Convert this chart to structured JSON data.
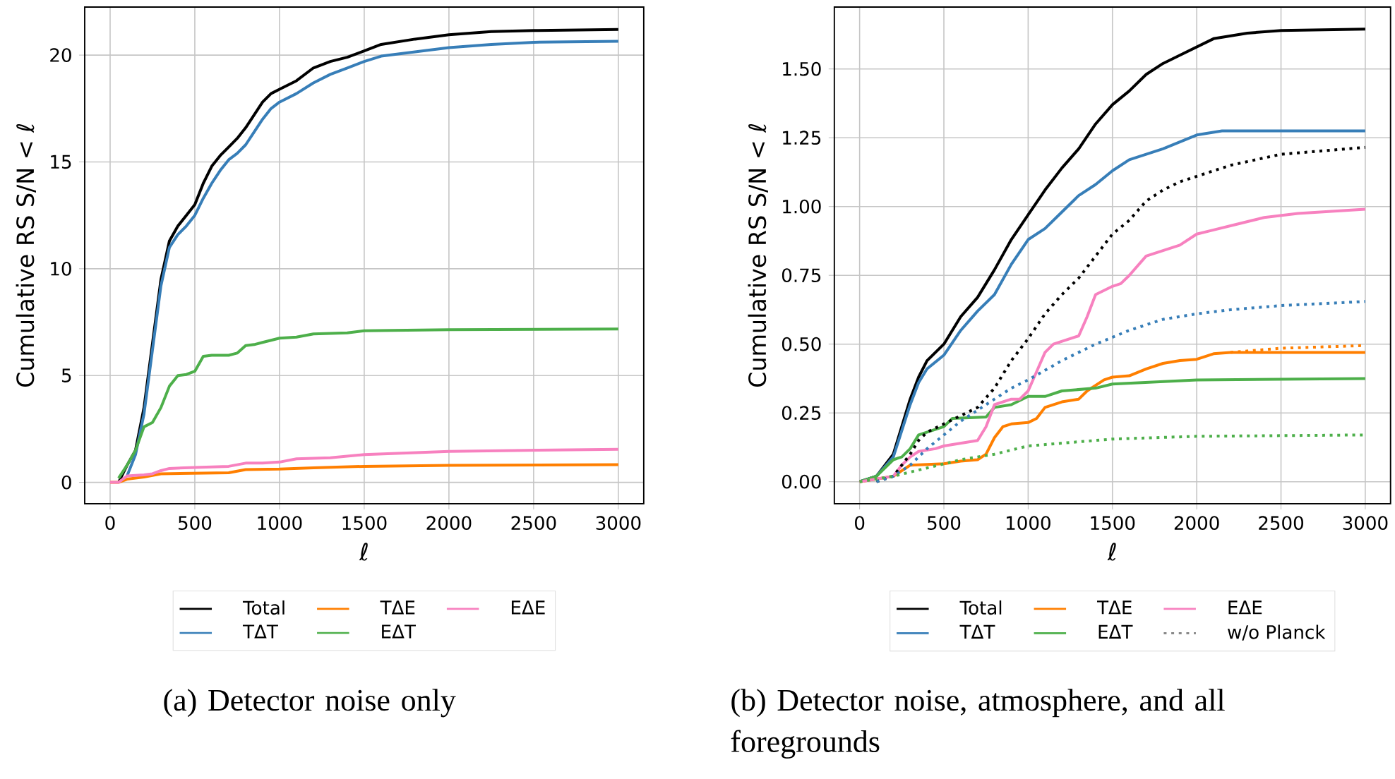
{
  "chart_data": [
    {
      "type": "line",
      "xlabel": "ℓ",
      "ylabel": "Cumulative RS S/N  < *ℓ*",
      "xlim": [
        -150,
        3150
      ],
      "ylim": [
        -1.0,
        22.25
      ],
      "xticks": [
        0,
        500,
        1000,
        1500,
        2000,
        2500,
        3000
      ],
      "yticks": [
        0,
        5,
        10,
        15,
        20
      ],
      "grid": true,
      "legend": "bottom",
      "annotations": [
        "(a) Detector noise only"
      ],
      "series": [
        {
          "name": "Total",
          "color": "#000000",
          "x": [
            50,
            100,
            150,
            200,
            250,
            300,
            350,
            400,
            450,
            500,
            550,
            600,
            650,
            700,
            750,
            800,
            850,
            900,
            950,
            1000,
            1100,
            1200,
            1300,
            1400,
            1500,
            1600,
            1800,
            2000,
            2250,
            2500,
            3000
          ],
          "values": [
            0,
            0.8,
            1.5,
            3.5,
            6.5,
            9.5,
            11.3,
            12,
            12.5,
            13,
            14,
            14.8,
            15.3,
            15.7,
            16.1,
            16.6,
            17.2,
            17.8,
            18.2,
            18.4,
            18.8,
            19.4,
            19.7,
            19.9,
            20.2,
            20.5,
            20.75,
            20.95,
            21.1,
            21.15,
            21.2
          ]
        },
        {
          "name": "TΔT",
          "color": "#377eb8",
          "x": [
            100,
            150,
            200,
            250,
            300,
            350,
            400,
            450,
            500,
            550,
            600,
            650,
            700,
            750,
            800,
            850,
            900,
            950,
            1000,
            1100,
            1200,
            1300,
            1400,
            1500,
            1600,
            1800,
            2000,
            2250,
            2500,
            3000
          ],
          "values": [
            0.3,
            1.3,
            3.2,
            6.2,
            9.2,
            11,
            11.6,
            12,
            12.5,
            13.3,
            14,
            14.6,
            15.1,
            15.4,
            15.8,
            16.4,
            17,
            17.5,
            17.8,
            18.2,
            18.7,
            19.1,
            19.4,
            19.7,
            19.95,
            20.15,
            20.35,
            20.5,
            20.6,
            20.65
          ]
        },
        {
          "name": "TΔE",
          "color": "#ff7f00",
          "x": [
            0,
            50,
            100,
            200,
            300,
            700,
            800,
            1000,
            1200,
            1500,
            2000,
            3000
          ],
          "values": [
            0,
            0,
            0.15,
            0.25,
            0.4,
            0.45,
            0.6,
            0.62,
            0.68,
            0.75,
            0.8,
            0.83
          ]
        },
        {
          "name": "EΔT",
          "color": "#4daf4a",
          "x": [
            50,
            100,
            150,
            200,
            250,
            300,
            350,
            400,
            450,
            500,
            550,
            600,
            700,
            750,
            800,
            850,
            900,
            1000,
            1100,
            1200,
            1400,
            1500,
            2000,
            3000
          ],
          "values": [
            0.2,
            0.8,
            1.5,
            2.6,
            2.8,
            3.5,
            4.5,
            5,
            5.05,
            5.2,
            5.9,
            5.95,
            5.95,
            6.05,
            6.4,
            6.45,
            6.55,
            6.75,
            6.8,
            6.95,
            7,
            7.1,
            7.15,
            7.18
          ]
        },
        {
          "name": "EΔE",
          "color": "#f781bf",
          "x": [
            0,
            50,
            100,
            200,
            250,
            300,
            350,
            500,
            700,
            800,
            900,
            1000,
            1100,
            1300,
            1500,
            2000,
            3000
          ],
          "values": [
            0,
            0,
            0.3,
            0.35,
            0.4,
            0.55,
            0.65,
            0.7,
            0.75,
            0.9,
            0.9,
            0.95,
            1.1,
            1.15,
            1.3,
            1.45,
            1.55
          ]
        }
      ]
    },
    {
      "type": "line",
      "xlabel": "ℓ",
      "ylabel": "Cumulative RS S/N  < *ℓ*",
      "xlim": [
        -150,
        3150
      ],
      "ylim": [
        -0.08,
        1.725
      ],
      "xticks": [
        0,
        500,
        1000,
        1500,
        2000,
        2500,
        3000
      ],
      "yticks": [
        {
          "value": 0,
          "label": "0.00"
        },
        {
          "value": 0.25,
          "label": "0.25"
        },
        {
          "value": 0.5,
          "label": "0.50"
        },
        {
          "value": 0.75,
          "label": "0.75"
        },
        {
          "value": 1,
          "label": "1.00"
        },
        {
          "value": 1.25,
          "label": "1.25"
        },
        {
          "value": 1.5,
          "label": "1.50"
        }
      ],
      "grid": true,
      "legend": "bottom",
      "annotations": [
        "(b) Detector noise, atmosphere, and all foregrounds"
      ],
      "series": [
        {
          "name": "Total",
          "color": "#000000",
          "x": [
            0,
            100,
            200,
            300,
            350,
            400,
            450,
            500,
            550,
            600,
            700,
            800,
            900,
            1000,
            1100,
            1200,
            1300,
            1400,
            1500,
            1600,
            1700,
            1800,
            1900,
            2000,
            2100,
            2300,
            2500,
            3000
          ],
          "values": [
            0,
            0.02,
            0.1,
            0.3,
            0.38,
            0.44,
            0.47,
            0.5,
            0.55,
            0.6,
            0.67,
            0.77,
            0.88,
            0.97,
            1.06,
            1.14,
            1.21,
            1.3,
            1.37,
            1.42,
            1.48,
            1.52,
            1.55,
            1.58,
            1.61,
            1.63,
            1.64,
            1.645
          ]
        },
        {
          "name": "TΔT",
          "color": "#377eb8",
          "x": [
            0,
            100,
            200,
            300,
            350,
            400,
            500,
            600,
            700,
            800,
            900,
            1000,
            1100,
            1200,
            1300,
            1400,
            1500,
            1600,
            1800,
            2000,
            2150,
            3000
          ],
          "values": [
            0,
            0.02,
            0.09,
            0.28,
            0.36,
            0.41,
            0.46,
            0.55,
            0.62,
            0.68,
            0.79,
            0.88,
            0.92,
            0.98,
            1.04,
            1.08,
            1.13,
            1.17,
            1.21,
            1.26,
            1.275,
            1.275
          ]
        },
        {
          "name": "TΔE",
          "color": "#ff7f00",
          "x": [
            0,
            200,
            250,
            300,
            500,
            600,
            700,
            750,
            800,
            850,
            900,
            1000,
            1050,
            1100,
            1200,
            1300,
            1350,
            1450,
            1500,
            1600,
            1700,
            1800,
            1900,
            2000,
            2100,
            2200,
            3000
          ],
          "values": [
            0,
            0.02,
            0.04,
            0.06,
            0.065,
            0.075,
            0.08,
            0.1,
            0.16,
            0.2,
            0.21,
            0.215,
            0.23,
            0.27,
            0.29,
            0.3,
            0.33,
            0.37,
            0.38,
            0.385,
            0.41,
            0.43,
            0.44,
            0.445,
            0.465,
            0.47,
            0.47
          ]
        },
        {
          "name": "EΔT",
          "color": "#4daf4a",
          "x": [
            0,
            100,
            200,
            250,
            300,
            350,
            400,
            450,
            500,
            550,
            750,
            800,
            900,
            1000,
            1100,
            1200,
            1400,
            1500,
            2000,
            3000
          ],
          "values": [
            0,
            0.02,
            0.08,
            0.09,
            0.12,
            0.17,
            0.18,
            0.19,
            0.2,
            0.23,
            0.235,
            0.27,
            0.28,
            0.31,
            0.31,
            0.33,
            0.34,
            0.355,
            0.37,
            0.375
          ]
        },
        {
          "name": "EΔE",
          "color": "#f781bf",
          "x": [
            0,
            200,
            250,
            300,
            350,
            450,
            500,
            600,
            700,
            750,
            800,
            900,
            950,
            1000,
            1050,
            1100,
            1150,
            1300,
            1350,
            1400,
            1500,
            1550,
            1600,
            1700,
            1800,
            1900,
            2000,
            2100,
            2200,
            2400,
            2600,
            3000
          ],
          "values": [
            0,
            0.02,
            0.06,
            0.09,
            0.11,
            0.12,
            0.13,
            0.14,
            0.15,
            0.2,
            0.28,
            0.3,
            0.3,
            0.33,
            0.4,
            0.47,
            0.5,
            0.53,
            0.6,
            0.68,
            0.71,
            0.72,
            0.75,
            0.82,
            0.84,
            0.86,
            0.9,
            0.915,
            0.93,
            0.96,
            0.975,
            0.99
          ]
        },
        {
          "color": "#000000",
          "line_style": "dotted",
          "x": [
            100,
            200,
            250,
            300,
            350,
            400,
            500,
            600,
            700,
            800,
            900,
            1000,
            1100,
            1200,
            1300,
            1400,
            1500,
            1600,
            1700,
            1800,
            1900,
            2000,
            2200,
            2500,
            3000
          ],
          "values": [
            0,
            0.02,
            0.06,
            0.1,
            0.15,
            0.18,
            0.21,
            0.24,
            0.27,
            0.34,
            0.44,
            0.52,
            0.61,
            0.68,
            0.74,
            0.82,
            0.9,
            0.95,
            1.02,
            1.06,
            1.09,
            1.11,
            1.15,
            1.19,
            1.215
          ]
        },
        {
          "color": "#377eb8",
          "line_style": "dotted",
          "x": [
            100,
            200,
            300,
            400,
            500,
            600,
            700,
            800,
            900,
            1000,
            1200,
            1400,
            1600,
            1800,
            2000,
            2200,
            2500,
            3000
          ],
          "values": [
            0,
            0.02,
            0.06,
            0.12,
            0.17,
            0.22,
            0.26,
            0.3,
            0.34,
            0.37,
            0.44,
            0.5,
            0.55,
            0.59,
            0.61,
            0.625,
            0.64,
            0.655
          ]
        },
        {
          "color": "#ff7f00",
          "line_style": "dotted",
          "x": [
            2200,
            2500,
            3000
          ],
          "values": [
            0.47,
            0.485,
            0.495
          ]
        },
        {
          "color": "#4daf4a",
          "line_style": "dotted",
          "x": [
            0,
            200,
            400,
            600,
            800,
            1000,
            1200,
            1500,
            2000,
            3000
          ],
          "values": [
            0,
            0.02,
            0.05,
            0.08,
            0.1,
            0.13,
            0.14,
            0.155,
            0.165,
            0.17
          ]
        },
        {
          "name": "w/o Planck",
          "color": "#808080",
          "line_style": "dotted"
        }
      ]
    }
  ]
}
